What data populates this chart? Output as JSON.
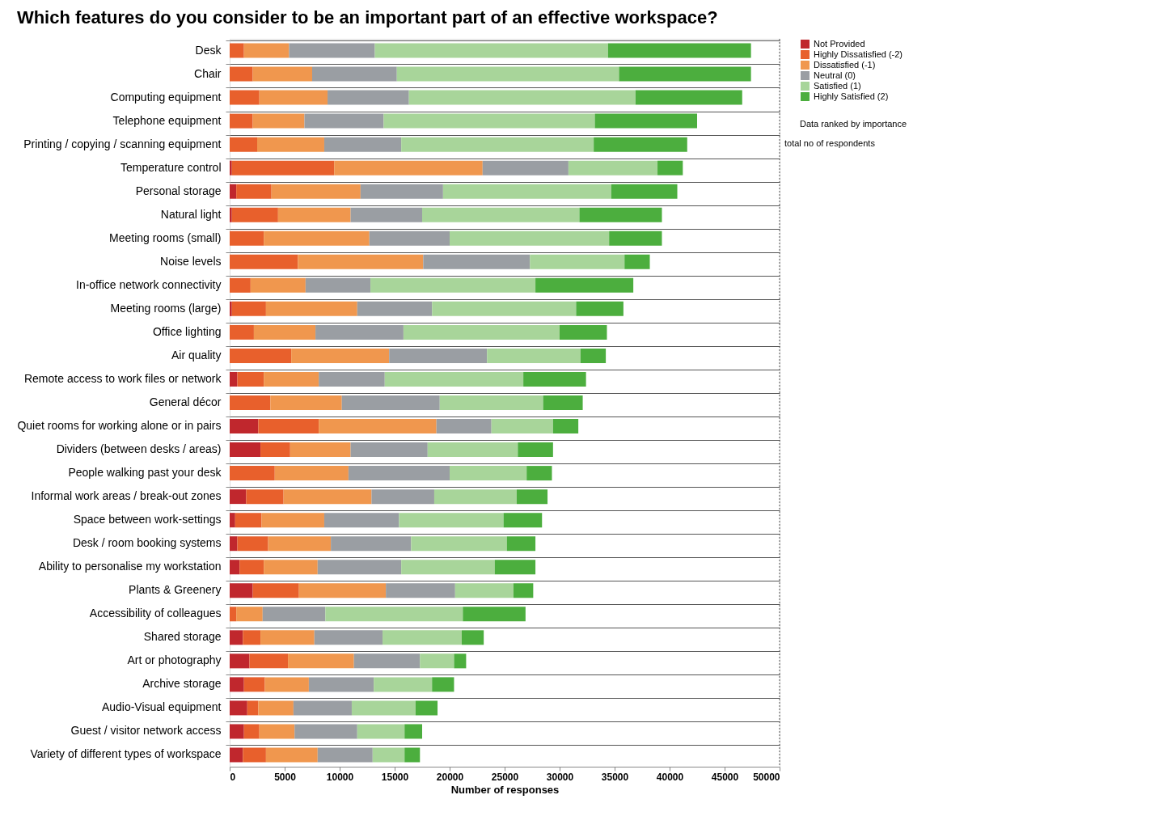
{
  "chart_data": {
    "type": "bar",
    "orientation": "horizontal",
    "stacked": true,
    "title": "Which features do you consider to be an important part of an effective workspace?",
    "xlabel": "Number of responses",
    "categories": [
      "Desk",
      "Chair",
      "Computing equipment",
      "Telephone equipment",
      "Printing / copying / scanning equipment",
      "Temperature control",
      "Personal storage",
      "Natural light",
      "Meeting rooms (small)",
      "Noise levels",
      "In-office network connectivity",
      "Meeting rooms (large)",
      "Office lighting",
      "Air quality",
      "Remote access to work files or network",
      "General décor",
      "Quiet rooms for working alone or in pairs",
      "Dividers (between desks / areas)",
      "People walking past your desk",
      "Informal work areas / break-out zones",
      "Space between work-settings",
      "Desk / room booking systems",
      "Ability to personalise my workstation",
      "Plants & Greenery",
      "Accessibility of colleagues",
      "Shared storage",
      "Art or photography",
      "Archive storage",
      "Audio-Visual equipment",
      "Guest / visitor network access",
      "Variety of different types of workspace"
    ],
    "series": [
      {
        "name": "Not Provided",
        "color": "#c0272d",
        "values": [
          null,
          null,
          null,
          null,
          null,
          200,
          600,
          200,
          null,
          null,
          null,
          200,
          null,
          null,
          700,
          null,
          2600,
          2800,
          null,
          1500,
          500,
          700,
          900,
          2100,
          null,
          1200,
          1800,
          1300,
          1600,
          1300,
          1200
        ]
      },
      {
        "name": "Highly Dissatisfied (-2)",
        "color": "#e8602c",
        "values": [
          1300,
          2100,
          2700,
          2100,
          2500,
          9300,
          3200,
          4200,
          3100,
          6200,
          1900,
          3100,
          2200,
          5600,
          2400,
          3700,
          5500,
          2700,
          4100,
          3400,
          2400,
          2800,
          2200,
          4200,
          600,
          1600,
          3500,
          1900,
          1000,
          1400,
          2100
        ]
      },
      {
        "name": "Dissatisfied (-1)",
        "color": "#f0974e",
        "values": [
          4100,
          5400,
          6200,
          4700,
          6100,
          13500,
          8100,
          6600,
          9600,
          11400,
          5000,
          8300,
          5600,
          8900,
          5000,
          6500,
          10700,
          5500,
          6700,
          8000,
          5700,
          5700,
          4900,
          7900,
          2400,
          4900,
          6000,
          4000,
          3200,
          3200,
          4700
        ]
      },
      {
        "name": "Neutral (0)",
        "color": "#9a9ea3",
        "values": [
          7800,
          7700,
          7400,
          7200,
          7000,
          7800,
          7500,
          6500,
          7300,
          9700,
          5900,
          6800,
          8000,
          8900,
          6000,
          8900,
          5000,
          7000,
          9200,
          5700,
          6800,
          7300,
          7600,
          6300,
          5700,
          6200,
          6000,
          5900,
          5300,
          5700,
          5000
        ]
      },
      {
        "name": "Satisfied (1)",
        "color": "#a8d59a",
        "values": [
          21200,
          20200,
          20600,
          19200,
          17500,
          8100,
          15300,
          14300,
          14500,
          8600,
          15000,
          13100,
          14200,
          8500,
          12600,
          9400,
          5600,
          8200,
          7000,
          7500,
          9500,
          8700,
          8500,
          5300,
          12500,
          7200,
          3100,
          5300,
          5800,
          4300,
          2900
        ]
      },
      {
        "name": "Highly Satisfied (2)",
        "color": "#4cae3e",
        "values": [
          13000,
          12000,
          9700,
          9300,
          8500,
          2300,
          6000,
          7500,
          4800,
          2300,
          8900,
          4300,
          4300,
          2300,
          5700,
          3600,
          2300,
          3200,
          2300,
          2800,
          3500,
          2600,
          3700,
          1800,
          5700,
          2000,
          1100,
          2000,
          2000,
          1600,
          1400
        ]
      }
    ],
    "xlim": [
      0,
      50000
    ],
    "xticks": [
      0,
      5000,
      10000,
      15000,
      20000,
      25000,
      30000,
      35000,
      40000,
      45000,
      50000
    ],
    "grid": "y",
    "legend": "top right",
    "ref_lines": [
      {
        "axis": "x",
        "value": 50000,
        "label": "total no of respondents",
        "line_style": "dotted",
        "color": "#555555"
      }
    ],
    "annotations": [
      "Data ranked by importance"
    ]
  }
}
